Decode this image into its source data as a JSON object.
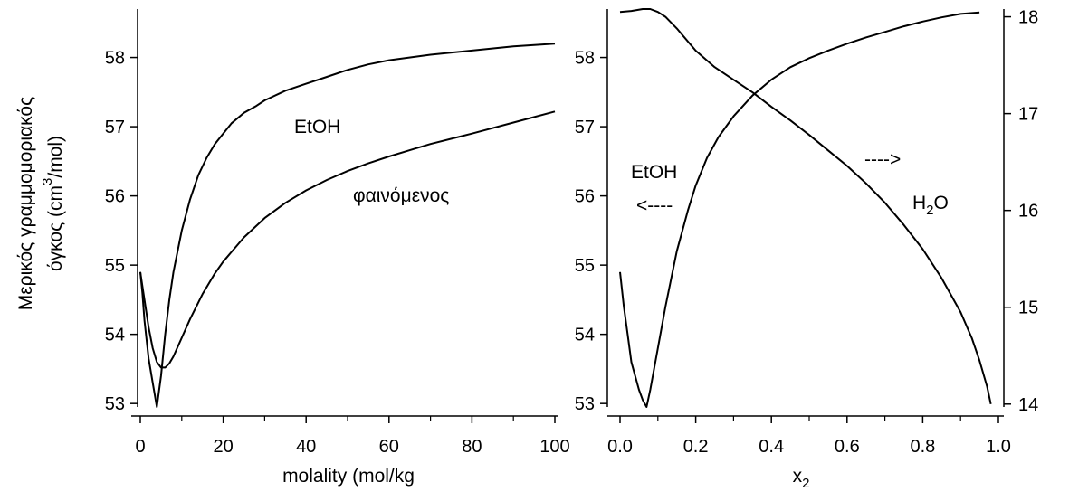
{
  "chart_data": [
    {
      "type": "line",
      "xlabel": "molality (mol/kg",
      "ylabel_line1": "Μερικός γραμμομοριακός",
      "ylabel_line2_pre": "όγκος (cm",
      "ylabel_sup": "3",
      "ylabel_line2_post": "/mol)",
      "xlim": [
        0,
        100
      ],
      "ylim": [
        52.95,
        58.7
      ],
      "xticks": [
        0,
        20,
        40,
        60,
        80,
        100
      ],
      "yticks": [
        53,
        54,
        55,
        56,
        57,
        58
      ],
      "annotations": [
        "EtOH",
        "φαινόμενος"
      ],
      "series": [
        {
          "name": "EtOH",
          "x": [
            0,
            0.5,
            1,
            2,
            3,
            4,
            5,
            6,
            7,
            8,
            10,
            12,
            14,
            16,
            18,
            20,
            22,
            25,
            28,
            30,
            35,
            40,
            45,
            50,
            55,
            60,
            70,
            80,
            90,
            100
          ],
          "y": [
            54.9,
            54.6,
            54.2,
            53.65,
            53.3,
            52.95,
            53.4,
            54.0,
            54.5,
            54.9,
            55.5,
            55.95,
            56.3,
            56.55,
            56.75,
            56.9,
            57.05,
            57.2,
            57.3,
            57.38,
            57.52,
            57.62,
            57.72,
            57.82,
            57.9,
            57.96,
            58.04,
            58.1,
            58.16,
            58.2
          ]
        },
        {
          "name": "φαινόμενος",
          "x": [
            0,
            0.5,
            1,
            2,
            3,
            4,
            5,
            6,
            7,
            8,
            10,
            12,
            15,
            18,
            20,
            25,
            30,
            35,
            40,
            45,
            50,
            55,
            60,
            65,
            70,
            80,
            90,
            100
          ],
          "y": [
            54.9,
            54.7,
            54.5,
            54.1,
            53.8,
            53.6,
            53.52,
            53.52,
            53.58,
            53.68,
            53.95,
            54.22,
            54.58,
            54.88,
            55.05,
            55.4,
            55.68,
            55.9,
            56.08,
            56.23,
            56.36,
            56.47,
            56.57,
            56.66,
            56.75,
            56.9,
            57.06,
            57.22
          ]
        }
      ]
    },
    {
      "type": "line",
      "xlabel_main": "x",
      "xlabel_sub": "2",
      "xlim": [
        -0.015,
        1.015
      ],
      "ylim_left": [
        52.95,
        58.7
      ],
      "ylim_right": [
        13.97,
        18.08
      ],
      "xticks": [
        0.0,
        0.2,
        0.4,
        0.6,
        0.8,
        1.0
      ],
      "xtick_labels": [
        "0.0",
        "0.2",
        "0.4",
        "0.6",
        "0.8",
        "1.0"
      ],
      "yticks_left": [
        53,
        54,
        55,
        56,
        57,
        58
      ],
      "yticks_right": [
        14,
        15,
        16,
        17,
        18
      ],
      "annotations": {
        "etoh": "EtOH",
        "left_arrow": "<----",
        "right_arrow": "---->",
        "h2o_main": "H",
        "h2o_sub": "2",
        "h2o_end": "O"
      },
      "series": [
        {
          "name": "EtOH",
          "axis": "left",
          "x": [
            0.0,
            0.01,
            0.02,
            0.03,
            0.04,
            0.05,
            0.06,
            0.07,
            0.08,
            0.1,
            0.12,
            0.15,
            0.18,
            0.2,
            0.23,
            0.26,
            0.3,
            0.35,
            0.4,
            0.45,
            0.5,
            0.55,
            0.6,
            0.65,
            0.7,
            0.75,
            0.8,
            0.85,
            0.9,
            0.95
          ],
          "y": [
            54.9,
            54.4,
            54.0,
            53.6,
            53.4,
            53.2,
            53.05,
            52.95,
            53.2,
            53.8,
            54.4,
            55.2,
            55.8,
            56.15,
            56.55,
            56.85,
            57.15,
            57.45,
            57.68,
            57.86,
            57.99,
            58.1,
            58.2,
            58.29,
            58.37,
            58.45,
            58.52,
            58.58,
            58.63,
            58.65
          ]
        },
        {
          "name": "H2O",
          "axis": "right",
          "x": [
            0.0,
            0.03,
            0.06,
            0.08,
            0.1,
            0.12,
            0.15,
            0.2,
            0.25,
            0.3,
            0.35,
            0.4,
            0.45,
            0.5,
            0.55,
            0.6,
            0.65,
            0.7,
            0.75,
            0.8,
            0.85,
            0.9,
            0.93,
            0.95,
            0.97,
            0.98
          ],
          "y": [
            18.05,
            18.06,
            18.08,
            18.08,
            18.05,
            18.0,
            17.88,
            17.65,
            17.48,
            17.35,
            17.22,
            17.07,
            16.93,
            16.78,
            16.62,
            16.46,
            16.28,
            16.08,
            15.85,
            15.6,
            15.3,
            14.95,
            14.68,
            14.45,
            14.18,
            14.0
          ]
        }
      ]
    }
  ]
}
